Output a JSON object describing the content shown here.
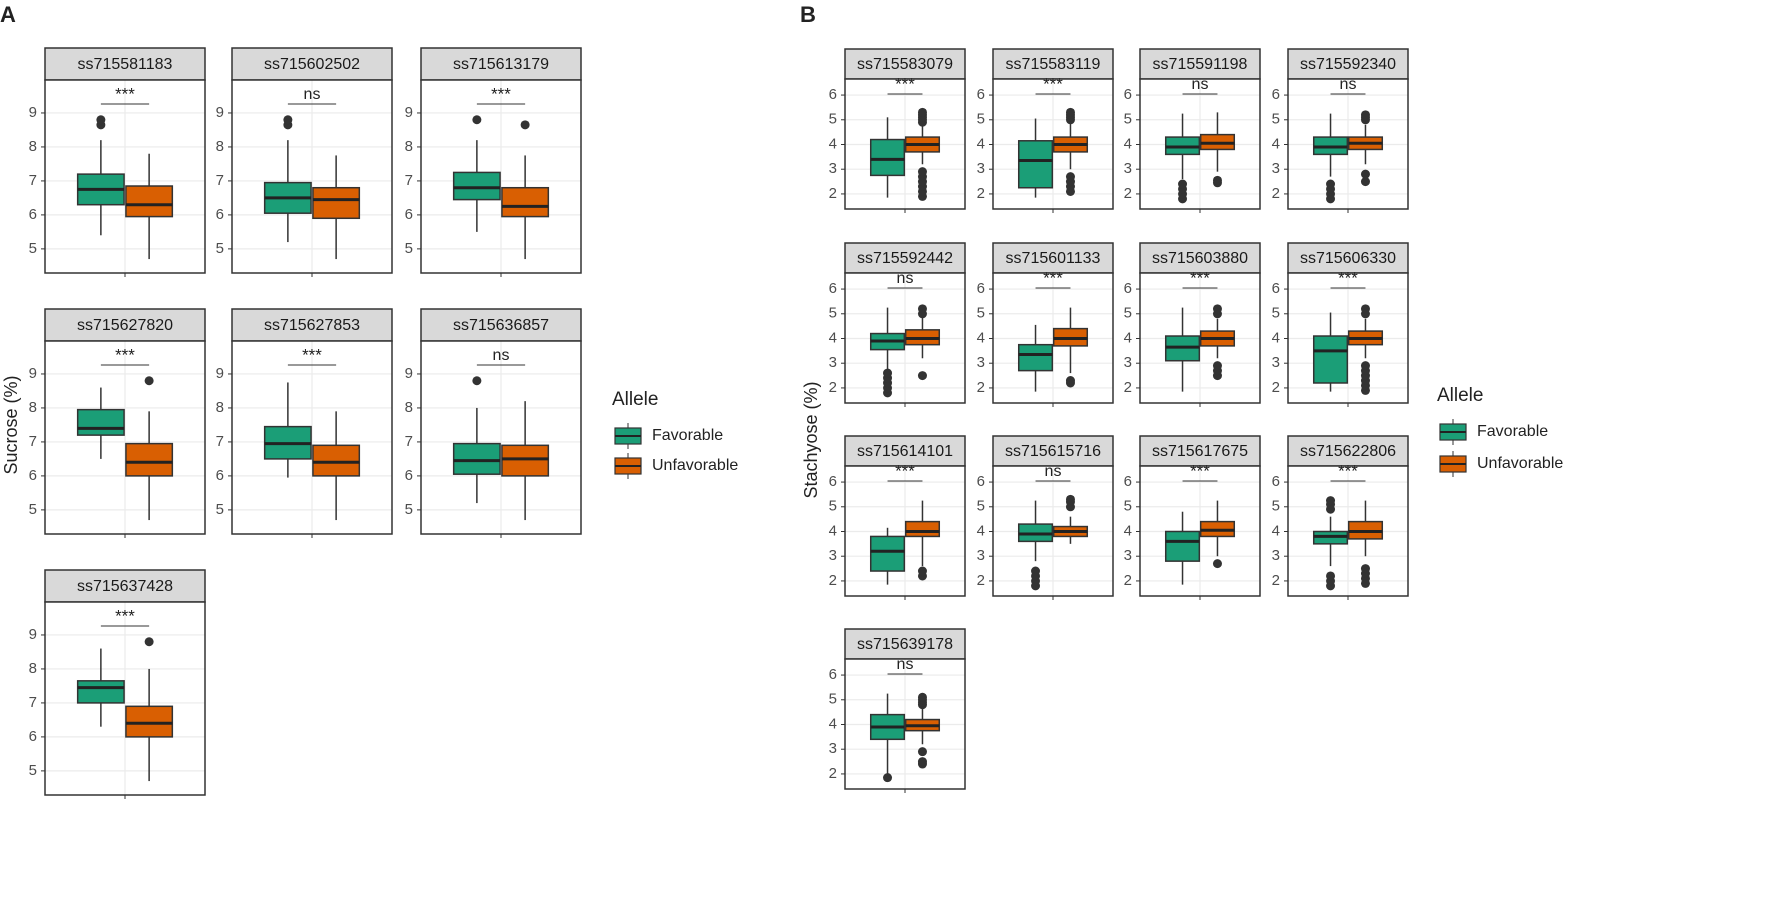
{
  "chart_data": [
    {
      "type": "box",
      "panel": "A",
      "ylabel": "Sucrose (%)",
      "ylim": [
        4.29,
        9.97
      ],
      "yticks": [
        5,
        6,
        7,
        8,
        9
      ],
      "grid": true,
      "legend_title": "Allele",
      "series": [
        {
          "name": "Favorable",
          "color": "#1b9e77"
        },
        {
          "name": "Unfavorable",
          "color": "#d95f02"
        }
      ],
      "facets": [
        {
          "title": "ss715581183",
          "significance": "***",
          "boxes": [
            {
              "whislo": 5.4,
              "q1": 6.3,
              "med": 6.75,
              "q3": 7.2,
              "whishi": 8.2,
              "fliers": [
                8.65,
                8.8
              ]
            },
            {
              "whislo": 4.7,
              "q1": 5.95,
              "med": 6.3,
              "q3": 6.85,
              "whishi": 7.8,
              "fliers": []
            }
          ]
        },
        {
          "title": "ss715602502",
          "significance": "ns",
          "boxes": [
            {
              "whislo": 5.2,
              "q1": 6.05,
              "med": 6.5,
              "q3": 6.95,
              "whishi": 8.2,
              "fliers": [
                8.65,
                8.8
              ]
            },
            {
              "whislo": 4.7,
              "q1": 5.9,
              "med": 6.45,
              "q3": 6.8,
              "whishi": 7.75,
              "fliers": []
            }
          ]
        },
        {
          "title": "ss715613179",
          "significance": "***",
          "boxes": [
            {
              "whislo": 5.5,
              "q1": 6.45,
              "med": 6.8,
              "q3": 7.25,
              "whishi": 8.2,
              "fliers": [
                8.8
              ]
            },
            {
              "whislo": 4.7,
              "q1": 5.95,
              "med": 6.25,
              "q3": 6.8,
              "whishi": 7.75,
              "fliers": [
                8.65
              ]
            }
          ]
        },
        {
          "title": "ss715627820",
          "significance": "***",
          "boxes": [
            {
              "whislo": 6.5,
              "q1": 7.2,
              "med": 7.4,
              "q3": 7.95,
              "whishi": 8.6,
              "fliers": []
            },
            {
              "whislo": 4.7,
              "q1": 6.0,
              "med": 6.4,
              "q3": 6.95,
              "whishi": 7.9,
              "fliers": [
                8.8
              ]
            }
          ]
        },
        {
          "title": "ss715627853",
          "significance": "***",
          "boxes": [
            {
              "whislo": 5.95,
              "q1": 6.5,
              "med": 6.95,
              "q3": 7.45,
              "whishi": 8.75,
              "fliers": []
            },
            {
              "whislo": 4.7,
              "q1": 6.0,
              "med": 6.4,
              "q3": 6.9,
              "whishi": 7.9,
              "fliers": []
            }
          ]
        },
        {
          "title": "ss715636857",
          "significance": "ns",
          "boxes": [
            {
              "whislo": 5.2,
              "q1": 6.05,
              "med": 6.45,
              "q3": 6.95,
              "whishi": 8.0,
              "fliers": [
                8.8
              ]
            },
            {
              "whislo": 4.7,
              "q1": 6.0,
              "med": 6.5,
              "q3": 6.9,
              "whishi": 8.2,
              "fliers": []
            }
          ]
        },
        {
          "title": "ss715637428",
          "significance": "***",
          "boxes": [
            {
              "whislo": 6.3,
              "q1": 7.0,
              "med": 7.45,
              "q3": 7.65,
              "whishi": 8.6,
              "fliers": []
            },
            {
              "whislo": 4.7,
              "q1": 6.0,
              "med": 6.4,
              "q3": 6.9,
              "whishi": 8.0,
              "fliers": [
                8.8
              ]
            }
          ]
        }
      ]
    },
    {
      "type": "box",
      "panel": "B",
      "ylabel": "Stachyose (%)",
      "ylim": [
        1.39,
        6.65
      ],
      "yticks": [
        2,
        3,
        4,
        5,
        6
      ],
      "grid": true,
      "legend_title": "Allele",
      "series": [
        {
          "name": "Favorable",
          "color": "#1b9e77"
        },
        {
          "name": "Unfavorable",
          "color": "#d95f02"
        }
      ],
      "facets": [
        {
          "title": "ss715583079",
          "significance": "***",
          "boxes": [
            {
              "whislo": 1.85,
              "q1": 2.75,
              "med": 3.4,
              "q3": 4.2,
              "whishi": 5.1,
              "fliers": []
            },
            {
              "whislo": 3.2,
              "q1": 3.7,
              "med": 4.0,
              "q3": 4.3,
              "whishi": 4.75,
              "fliers": [
                1.9,
                2.1,
                2.3,
                2.5,
                2.7,
                2.9,
                4.9,
                5.0,
                5.1,
                5.2,
                5.3
              ]
            }
          ]
        },
        {
          "title": "ss715583119",
          "significance": "***",
          "boxes": [
            {
              "whislo": 1.85,
              "q1": 2.25,
              "med": 3.35,
              "q3": 4.15,
              "whishi": 5.05,
              "fliers": []
            },
            {
              "whislo": 3.0,
              "q1": 3.7,
              "med": 4.0,
              "q3": 4.3,
              "whishi": 4.9,
              "fliers": [
                2.1,
                2.3,
                2.5,
                2.7,
                5.0,
                5.1,
                5.2,
                5.3
              ]
            }
          ]
        },
        {
          "title": "ss715591198",
          "significance": "ns",
          "boxes": [
            {
              "whislo": 2.6,
              "q1": 3.6,
              "med": 3.9,
              "q3": 4.3,
              "whishi": 5.25,
              "fliers": [
                1.8,
                2.0,
                2.2,
                2.4
              ]
            },
            {
              "whislo": 2.9,
              "q1": 3.8,
              "med": 4.05,
              "q3": 4.4,
              "whishi": 5.3,
              "fliers": [
                2.45,
                2.55
              ]
            }
          ]
        },
        {
          "title": "ss715592340",
          "significance": "ns",
          "boxes": [
            {
              "whislo": 2.7,
              "q1": 3.6,
              "med": 3.9,
              "q3": 4.3,
              "whishi": 5.25,
              "fliers": [
                1.8,
                2.0,
                2.2,
                2.4
              ]
            },
            {
              "whislo": 3.2,
              "q1": 3.8,
              "med": 4.05,
              "q3": 4.3,
              "whishi": 4.8,
              "fliers": [
                2.5,
                2.8,
                5.0,
                5.1,
                5.2
              ]
            }
          ]
        },
        {
          "title": "ss715592442",
          "significance": "ns",
          "boxes": [
            {
              "whislo": 2.7,
              "q1": 3.55,
              "med": 3.9,
              "q3": 4.2,
              "whishi": 5.25,
              "fliers": [
                1.8,
                2.0,
                2.2,
                2.4,
                2.6
              ]
            },
            {
              "whislo": 3.2,
              "q1": 3.75,
              "med": 4.0,
              "q3": 4.35,
              "whishi": 4.9,
              "fliers": [
                2.5,
                5.0,
                5.2
              ]
            }
          ]
        },
        {
          "title": "ss715601133",
          "significance": "***",
          "boxes": [
            {
              "whislo": 1.85,
              "q1": 2.7,
              "med": 3.35,
              "q3": 3.75,
              "whishi": 4.55,
              "fliers": []
            },
            {
              "whislo": 2.6,
              "q1": 3.7,
              "med": 4.0,
              "q3": 4.4,
              "whishi": 5.25,
              "fliers": [
                2.2,
                2.3
              ]
            }
          ]
        },
        {
          "title": "ss715603880",
          "significance": "***",
          "boxes": [
            {
              "whislo": 1.85,
              "q1": 3.1,
              "med": 3.65,
              "q3": 4.1,
              "whishi": 5.25,
              "fliers": []
            },
            {
              "whislo": 3.2,
              "q1": 3.7,
              "med": 4.0,
              "q3": 4.3,
              "whishi": 4.8,
              "fliers": [
                2.5,
                2.7,
                2.9,
                5.0,
                5.2
              ]
            }
          ]
        },
        {
          "title": "ss715606330",
          "significance": "***",
          "boxes": [
            {
              "whislo": 1.85,
              "q1": 2.2,
              "med": 3.5,
              "q3": 4.1,
              "whishi": 5.05,
              "fliers": []
            },
            {
              "whislo": 3.2,
              "q1": 3.75,
              "med": 4.0,
              "q3": 4.3,
              "whishi": 4.8,
              "fliers": [
                1.9,
                2.1,
                2.3,
                2.5,
                2.7,
                2.9,
                5.0,
                5.2
              ]
            }
          ]
        },
        {
          "title": "ss715614101",
          "significance": "***",
          "boxes": [
            {
              "whislo": 1.85,
              "q1": 2.4,
              "med": 3.2,
              "q3": 3.8,
              "whishi": 4.15,
              "fliers": []
            },
            {
              "whislo": 2.6,
              "q1": 3.8,
              "med": 4.0,
              "q3": 4.4,
              "whishi": 5.25,
              "fliers": [
                2.2,
                2.4
              ]
            }
          ]
        },
        {
          "title": "ss715615716",
          "significance": "ns",
          "boxes": [
            {
              "whislo": 2.8,
              "q1": 3.6,
              "med": 3.9,
              "q3": 4.3,
              "whishi": 5.25,
              "fliers": [
                1.8,
                2.0,
                2.2,
                2.4
              ]
            },
            {
              "whislo": 3.5,
              "q1": 3.8,
              "med": 4.0,
              "q3": 4.2,
              "whishi": 4.6,
              "fliers": [
                5.0,
                5.2,
                5.3
              ]
            }
          ]
        },
        {
          "title": "ss715617675",
          "significance": "***",
          "boxes": [
            {
              "whislo": 1.85,
              "q1": 2.8,
              "med": 3.6,
              "q3": 4.0,
              "whishi": 4.8,
              "fliers": []
            },
            {
              "whislo": 3.0,
              "q1": 3.8,
              "med": 4.05,
              "q3": 4.4,
              "whishi": 5.25,
              "fliers": [
                2.7
              ]
            }
          ]
        },
        {
          "title": "ss715622806",
          "significance": "***",
          "boxes": [
            {
              "whislo": 2.6,
              "q1": 3.5,
              "med": 3.8,
              "q3": 4.0,
              "whishi": 4.6,
              "fliers": [
                1.8,
                2.0,
                2.2,
                4.9,
                5.1,
                5.25
              ]
            },
            {
              "whislo": 3.0,
              "q1": 3.7,
              "med": 4.0,
              "q3": 4.4,
              "whishi": 5.25,
              "fliers": [
                1.9,
                2.1,
                2.3,
                2.5
              ]
            }
          ]
        },
        {
          "title": "ss715639178",
          "significance": "ns",
          "boxes": [
            {
              "whislo": 2.0,
              "q1": 3.4,
              "med": 3.9,
              "q3": 4.4,
              "whishi": 5.25,
              "fliers": [
                1.85
              ]
            },
            {
              "whislo": 3.2,
              "q1": 3.75,
              "med": 3.95,
              "q3": 4.2,
              "whishi": 4.7,
              "fliers": [
                2.4,
                2.5,
                2.9,
                4.8,
                4.9,
                5.0,
                5.1
              ]
            }
          ]
        }
      ]
    }
  ]
}
